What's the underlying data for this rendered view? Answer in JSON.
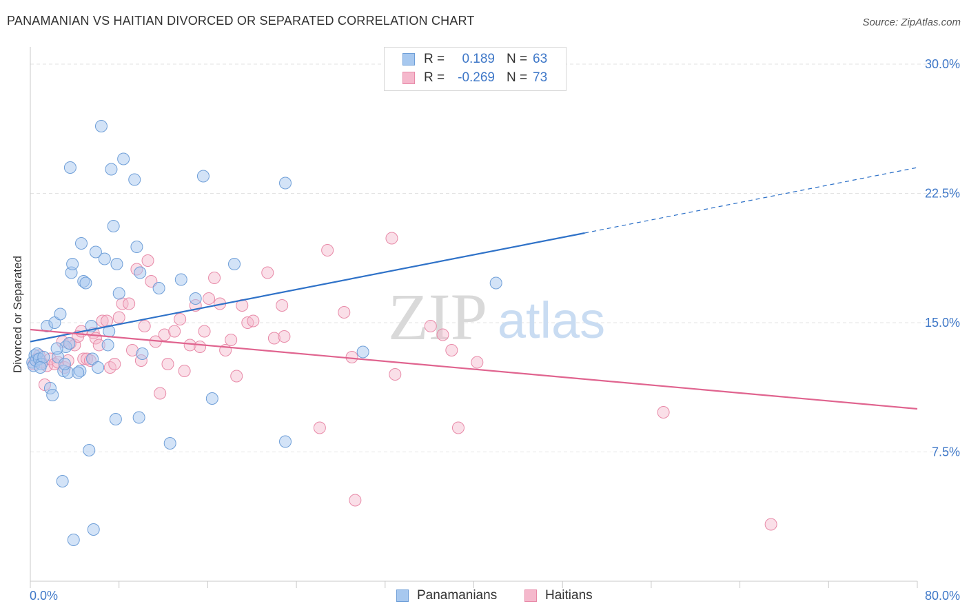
{
  "header": {
    "title": "PANAMANIAN VS HAITIAN DIVORCED OR SEPARATED CORRELATION CHART",
    "source": "Source: ZipAtlas.com"
  },
  "watermark": {
    "zip": "ZIP",
    "atlas": "atlas"
  },
  "legend_top": {
    "rows": [
      {
        "r_label": "R =",
        "r_value": "0.189",
        "n_label": "N =",
        "n_value": "63"
      },
      {
        "r_label": "R =",
        "r_value": "-0.269",
        "n_label": "N =",
        "n_value": "73"
      }
    ]
  },
  "legend_bottom": {
    "items": [
      {
        "label": "Panamanians"
      },
      {
        "label": "Haitians"
      }
    ]
  },
  "colors": {
    "blue_fill": "#a7c8ef",
    "blue_stroke": "#6f9fd8",
    "blue_line": "#2f72c8",
    "pink_fill": "#f5b8cc",
    "pink_stroke": "#e88aa8",
    "pink_line": "#e0648f",
    "axis_text": "#3f78c8",
    "grid": "#e3e3e3"
  },
  "chart_data": {
    "type": "scatter",
    "title": "PANAMANIAN VS HAITIAN DIVORCED OR SEPARATED CORRELATION CHART",
    "xlabel": "",
    "ylabel": "Divorced or Separated",
    "xlim": [
      0,
      80
    ],
    "ylim": [
      0,
      31
    ],
    "x_tick_labels": [
      "0.0%",
      "80.0%"
    ],
    "y_ticks": [
      7.5,
      15.0,
      22.5,
      30.0
    ],
    "y_tick_labels": [
      "7.5%",
      "15.0%",
      "22.5%",
      "30.0%"
    ],
    "grid": true,
    "legend_position": "top-center",
    "series": [
      {
        "name": "Panamanians",
        "r": 0.189,
        "n": 63,
        "trend": {
          "x0": 0.0,
          "y0": 13.9,
          "x1": 50.0,
          "y1": 20.2,
          "x_dashed_end": 80.0,
          "y_dashed_end": 24.0
        },
        "points": [
          [
            0.2,
            12.7
          ],
          [
            0.3,
            12.5
          ],
          [
            0.4,
            13.1
          ],
          [
            0.5,
            12.8
          ],
          [
            0.6,
            13.2
          ],
          [
            0.8,
            12.9
          ],
          [
            1.0,
            12.6
          ],
          [
            1.2,
            13.0
          ],
          [
            1.5,
            14.8
          ],
          [
            1.8,
            11.2
          ],
          [
            2.0,
            10.8
          ],
          [
            2.2,
            15.0
          ],
          [
            2.5,
            13.0
          ],
          [
            2.7,
            15.5
          ],
          [
            3.0,
            12.2
          ],
          [
            3.2,
            13.6
          ],
          [
            3.4,
            12.1
          ],
          [
            3.5,
            13.8
          ],
          [
            3.7,
            17.9
          ],
          [
            3.6,
            24.0
          ],
          [
            3.8,
            18.4
          ],
          [
            4.5,
            12.2
          ],
          [
            4.6,
            19.6
          ],
          [
            4.8,
            17.4
          ],
          [
            5.0,
            17.3
          ],
          [
            5.3,
            7.6
          ],
          [
            5.5,
            14.8
          ],
          [
            5.6,
            12.9
          ],
          [
            5.9,
            19.1
          ],
          [
            6.1,
            12.4
          ],
          [
            6.4,
            26.4
          ],
          [
            6.7,
            18.7
          ],
          [
            7.0,
            13.7
          ],
          [
            7.1,
            14.5
          ],
          [
            7.3,
            23.9
          ],
          [
            7.5,
            20.6
          ],
          [
            7.8,
            18.4
          ],
          [
            8.0,
            16.7
          ],
          [
            8.4,
            24.5
          ],
          [
            9.4,
            23.3
          ],
          [
            9.6,
            19.4
          ],
          [
            9.9,
            17.9
          ],
          [
            10.1,
            13.2
          ],
          [
            11.6,
            17.0
          ],
          [
            12.6,
            8.0
          ],
          [
            13.6,
            17.5
          ],
          [
            14.9,
            16.4
          ],
          [
            15.6,
            23.5
          ],
          [
            16.4,
            10.6
          ],
          [
            18.4,
            18.4
          ],
          [
            23.0,
            23.1
          ],
          [
            23.0,
            8.1
          ],
          [
            30.0,
            13.3
          ],
          [
            42.0,
            17.3
          ],
          [
            3.9,
            2.4
          ],
          [
            5.7,
            3.0
          ],
          [
            2.9,
            5.8
          ],
          [
            7.7,
            9.4
          ],
          [
            9.8,
            9.5
          ],
          [
            2.4,
            13.5
          ],
          [
            4.3,
            12.1
          ],
          [
            3.1,
            12.6
          ],
          [
            0.9,
            12.4
          ]
        ]
      },
      {
        "name": "Haitians",
        "r": -0.269,
        "n": 73,
        "trend": {
          "x0": 0.0,
          "y0": 14.6,
          "x1": 80.0,
          "y1": 10.0
        },
        "points": [
          [
            0.3,
            12.6
          ],
          [
            0.6,
            12.9
          ],
          [
            0.8,
            13.1
          ],
          [
            1.0,
            12.7
          ],
          [
            1.3,
            11.4
          ],
          [
            1.5,
            12.5
          ],
          [
            1.8,
            12.9
          ],
          [
            2.2,
            12.6
          ],
          [
            2.5,
            12.7
          ],
          [
            2.9,
            13.9
          ],
          [
            3.1,
            12.4
          ],
          [
            3.4,
            12.8
          ],
          [
            3.6,
            13.8
          ],
          [
            4.0,
            13.7
          ],
          [
            4.3,
            14.2
          ],
          [
            4.6,
            14.5
          ],
          [
            4.8,
            12.9
          ],
          [
            5.1,
            12.9
          ],
          [
            5.4,
            12.8
          ],
          [
            5.7,
            14.4
          ],
          [
            5.9,
            14.1
          ],
          [
            6.2,
            13.7
          ],
          [
            6.5,
            15.1
          ],
          [
            6.9,
            15.1
          ],
          [
            7.2,
            12.4
          ],
          [
            7.6,
            12.6
          ],
          [
            8.0,
            15.3
          ],
          [
            8.3,
            16.1
          ],
          [
            8.9,
            16.1
          ],
          [
            9.2,
            13.4
          ],
          [
            9.6,
            18.1
          ],
          [
            10.0,
            12.8
          ],
          [
            10.3,
            14.8
          ],
          [
            10.6,
            18.6
          ],
          [
            10.9,
            17.4
          ],
          [
            11.3,
            13.9
          ],
          [
            11.7,
            10.9
          ],
          [
            12.1,
            14.3
          ],
          [
            12.4,
            12.6
          ],
          [
            13.0,
            14.5
          ],
          [
            13.5,
            15.2
          ],
          [
            13.9,
            12.2
          ],
          [
            14.4,
            13.7
          ],
          [
            14.9,
            16.0
          ],
          [
            15.3,
            13.6
          ],
          [
            15.7,
            14.5
          ],
          [
            16.1,
            16.4
          ],
          [
            16.6,
            17.6
          ],
          [
            17.1,
            16.1
          ],
          [
            17.6,
            13.4
          ],
          [
            18.1,
            14.0
          ],
          [
            18.6,
            11.9
          ],
          [
            19.1,
            16.0
          ],
          [
            19.6,
            15.0
          ],
          [
            20.1,
            15.1
          ],
          [
            21.4,
            17.9
          ],
          [
            22.0,
            14.1
          ],
          [
            22.7,
            16.0
          ],
          [
            22.9,
            14.2
          ],
          [
            26.1,
            8.9
          ],
          [
            26.8,
            19.2
          ],
          [
            28.3,
            15.6
          ],
          [
            29.0,
            13.0
          ],
          [
            29.3,
            4.7
          ],
          [
            32.6,
            19.9
          ],
          [
            32.9,
            12.0
          ],
          [
            36.1,
            14.8
          ],
          [
            37.2,
            14.3
          ],
          [
            38.0,
            13.4
          ],
          [
            38.6,
            8.9
          ],
          [
            40.3,
            12.7
          ],
          [
            57.1,
            9.8
          ],
          [
            66.8,
            3.3
          ]
        ]
      }
    ]
  }
}
